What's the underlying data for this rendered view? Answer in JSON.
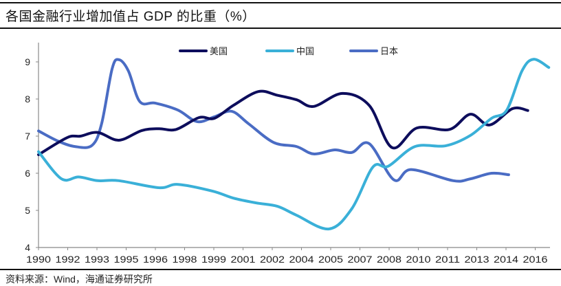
{
  "chart_data": {
    "type": "line",
    "title": "各国金融行业增加值占 GDP 的比重（%）",
    "source": "资料来源：Wind，海通证券研究所",
    "xlabel": "",
    "ylabel": "",
    "ylim": [
      4,
      9
    ],
    "yticks": [
      "4",
      "5",
      "6",
      "7",
      "8",
      "9"
    ],
    "xtick_labels": [
      "1990",
      "1992",
      "1993",
      "1995",
      "1996",
      "1998",
      "1999",
      "2001",
      "2002",
      "2004",
      "2005",
      "2007",
      "2008",
      "2010",
      "2011",
      "2013",
      "2014",
      "2016"
    ],
    "legend_placement": "top-center",
    "grid": false,
    "series": [
      {
        "name": "美国",
        "color": "#0d0d5c",
        "x": [
          1990,
          1991.5,
          1992.2,
          1993.1,
          1994.2,
          1995.4,
          1996.3,
          1997.2,
          1998.4,
          1999.2,
          2000.2,
          2001.5,
          2002.5,
          2003.5,
          2004.4,
          2005.9,
          2007.3,
          2008.5,
          2009.8,
          2011.5,
          2012.6,
          2013.6,
          2014.8,
          2015.6
        ],
        "y": [
          6.5,
          6.96,
          7.0,
          7.1,
          6.89,
          7.15,
          7.2,
          7.18,
          7.5,
          7.48,
          7.83,
          8.2,
          8.1,
          7.98,
          7.8,
          8.15,
          7.83,
          6.69,
          7.22,
          7.18,
          7.59,
          7.3,
          7.74,
          7.69
        ]
      },
      {
        "name": "中国",
        "color": "#3ab0d8",
        "x": [
          1990,
          1991.2,
          1992.1,
          1993.1,
          1994.2,
          1996.3,
          1997.3,
          1999.1,
          2000.2,
          2001.4,
          2002.5,
          2003.5,
          2005.2,
          2006.4,
          2007.5,
          2008.3,
          2009.7,
          2011.3,
          2012.6,
          2013.7,
          2014.5,
          2015.3,
          2015.9,
          2016.7
        ],
        "y": [
          6.58,
          5.85,
          5.9,
          5.8,
          5.8,
          5.61,
          5.7,
          5.52,
          5.33,
          5.2,
          5.11,
          4.87,
          4.5,
          5.05,
          6.17,
          6.19,
          6.72,
          6.74,
          7.02,
          7.48,
          7.7,
          8.76,
          9.07,
          8.85
        ]
      },
      {
        "name": "日本",
        "color": "#4a6cc4",
        "x": [
          1990,
          1991,
          1991.9,
          1992.8,
          1993.3,
          1993.85,
          1994.2,
          1994.7,
          1995.3,
          1996.1,
          1997.3,
          1998.3,
          1999.2,
          2000.1,
          2001,
          2002.3,
          2003.5,
          2004.4,
          2005.5,
          2006.4,
          2007.3,
          2008.6,
          2009.5,
          2011.7,
          2012.6,
          2013.7,
          2014.6
        ],
        "y": [
          7.14,
          6.87,
          6.72,
          6.75,
          7.33,
          8.81,
          9.06,
          8.76,
          7.93,
          7.89,
          7.7,
          7.39,
          7.52,
          7.67,
          7.33,
          6.83,
          6.72,
          6.52,
          6.63,
          6.56,
          6.8,
          5.82,
          6.1,
          5.8,
          5.85,
          6.0,
          5.96
        ]
      }
    ]
  }
}
